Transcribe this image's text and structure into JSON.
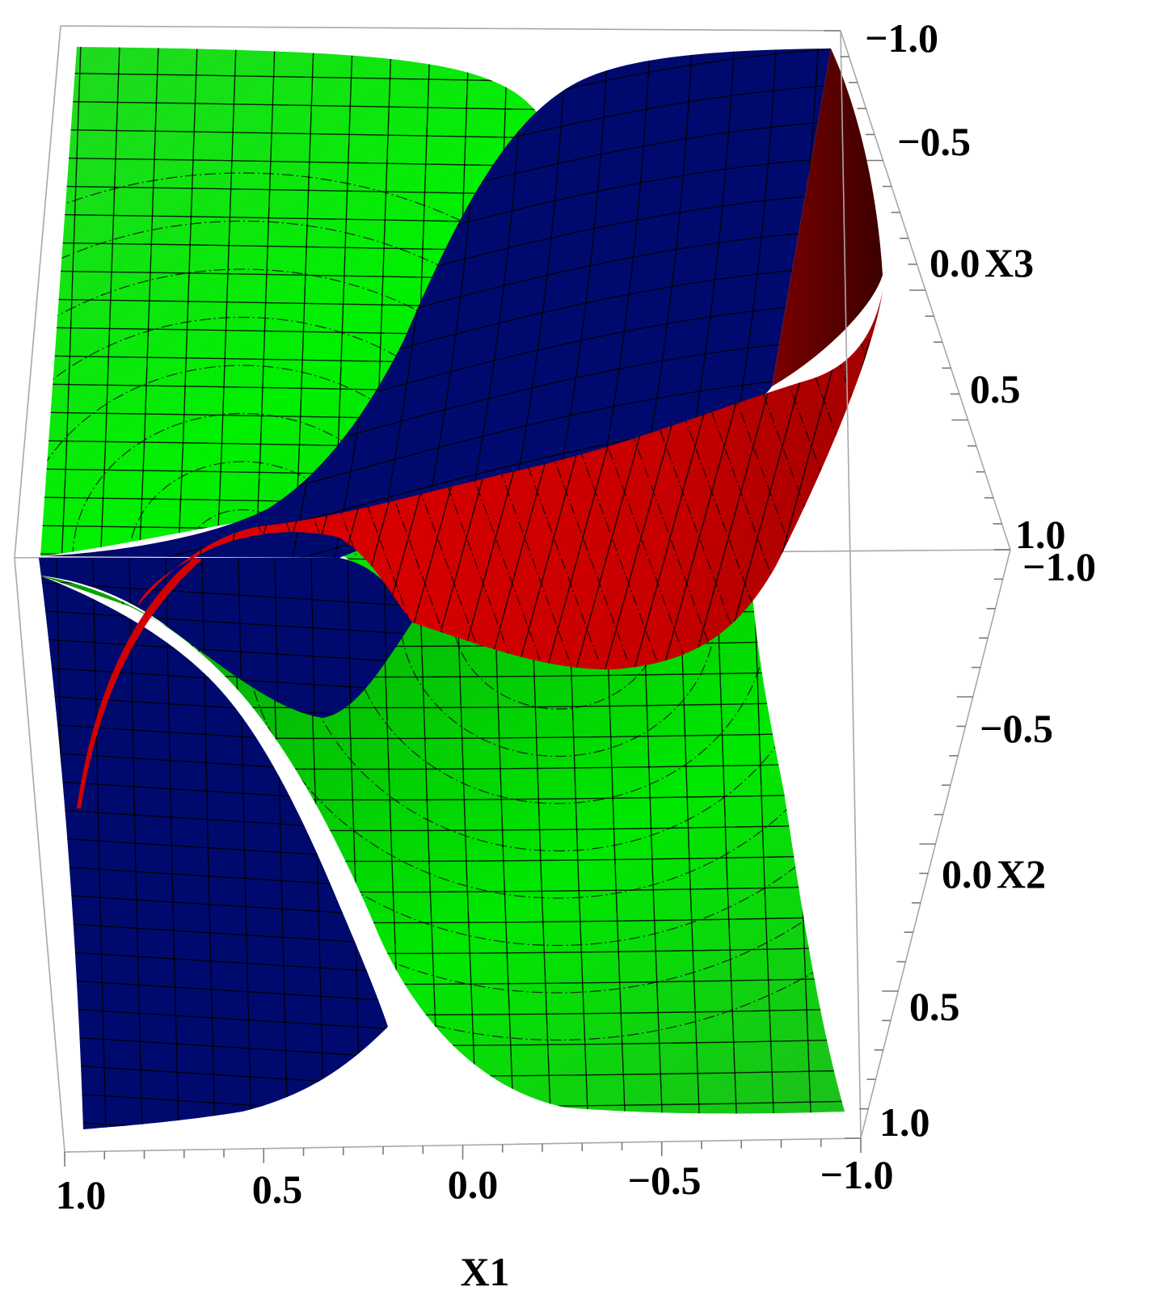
{
  "chart_data": {
    "type": "surface3d",
    "title": "",
    "axes": {
      "x1": {
        "label": "X1",
        "range": [
          1.0,
          -1.0
        ],
        "tick_labels": [
          "1.0",
          "0.5",
          "0.0",
          "−0.5",
          "−1.0"
        ]
      },
      "x2": {
        "label": "X2",
        "range": [
          -1.0,
          1.0
        ],
        "tick_labels": [
          "−1.0",
          "−0.5",
          "0.0",
          "0.5",
          "1.0"
        ]
      },
      "x3": {
        "label": "X3",
        "range": [
          -1.0,
          1.0
        ],
        "tick_labels": [
          "−1.0",
          "−0.5",
          "0.0",
          "0.5",
          "1.0"
        ]
      }
    },
    "surfaces": [
      {
        "color": "#00ee00"
      },
      {
        "color": "#000a6e"
      },
      {
        "color": "#d40000"
      }
    ],
    "mesh": true,
    "box": true
  }
}
